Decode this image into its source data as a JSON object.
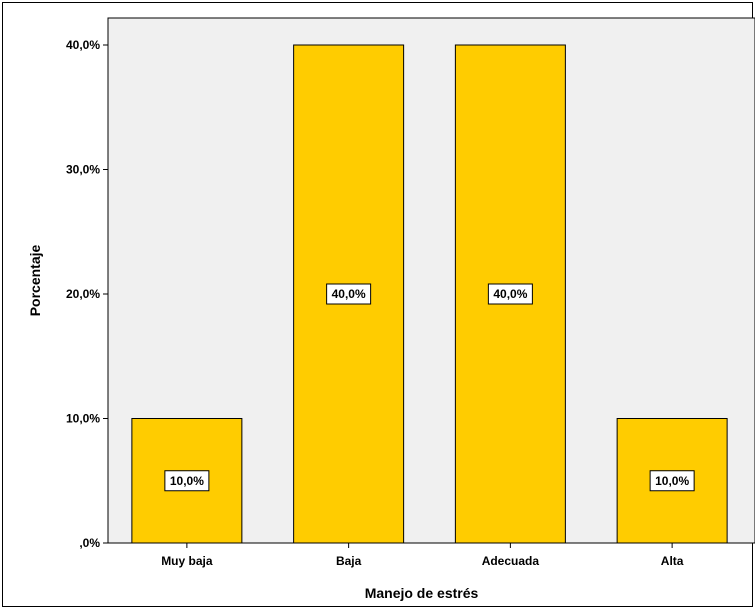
{
  "chart_data": {
    "type": "bar",
    "categories": [
      "Muy baja",
      "Baja",
      "Adecuada",
      "Alta"
    ],
    "values": [
      10,
      40,
      40,
      10
    ],
    "data_labels": [
      "10,0%",
      "40,0%",
      "40,0%",
      "10,0%"
    ],
    "xlabel": "Manejo de estrés",
    "ylabel": "Porcentaje",
    "ylim": [
      0,
      40
    ],
    "yticks": [
      0,
      10,
      20,
      30,
      40
    ],
    "ytick_labels": [
      ",0%",
      "10,0%",
      "20,0%",
      "30,0%",
      "40,0%"
    ],
    "grid": false,
    "bar_color": "#FFCC00",
    "plot_background": "#F0F0F0"
  }
}
